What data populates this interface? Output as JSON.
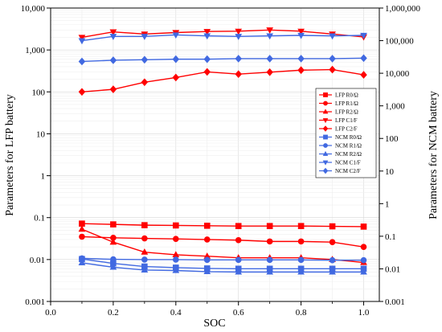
{
  "chart_data": {
    "type": "line",
    "x": [
      0.1,
      0.2,
      0.3,
      0.4,
      0.5,
      0.6,
      0.7,
      0.8,
      0.9,
      1.0
    ],
    "xlabel": "SOC",
    "ylabel_left": "Parameters for LFP battery",
    "ylabel_right": "Parameters for NCM battery",
    "xlim": [
      0.0,
      1.05
    ],
    "ylim_left": [
      0.001,
      10000
    ],
    "ylim_right": [
      0.001,
      1000000
    ],
    "yscale": "log",
    "grid": true,
    "legend_position": "right",
    "x_ticks": [
      "0.0",
      "0.2",
      "0.4",
      "0.6",
      "0.8",
      "1.0"
    ],
    "y_left_ticks": [
      "0.001",
      "0.01",
      "0.1",
      "1",
      "10",
      "100",
      "1,000",
      "10,000"
    ],
    "y_right_ticks": [
      "0.001",
      "0.01",
      "0.1",
      "1",
      "10",
      "100",
      "1,000",
      "10,000",
      "100,000",
      "1,000,000"
    ],
    "series": [
      {
        "name": "LFP R0/Ω",
        "axis": "left",
        "color": "#ff0000",
        "marker": "square",
        "values": [
          0.072,
          0.069,
          0.066,
          0.065,
          0.064,
          0.063,
          0.063,
          0.063,
          0.062,
          0.061
        ]
      },
      {
        "name": "LFP R1/Ω",
        "axis": "left",
        "color": "#ff0000",
        "marker": "circle",
        "values": [
          0.035,
          0.033,
          0.032,
          0.031,
          0.03,
          0.029,
          0.027,
          0.027,
          0.026,
          0.02
        ]
      },
      {
        "name": "LFP R2/Ω",
        "axis": "left",
        "color": "#ff0000",
        "marker": "triangle-up",
        "values": [
          0.053,
          0.026,
          0.015,
          0.013,
          0.012,
          0.011,
          0.011,
          0.011,
          0.01,
          0.0085
        ]
      },
      {
        "name": "LFP C1/F",
        "axis": "left",
        "color": "#ff0000",
        "marker": "triangle-down",
        "values": [
          2000,
          2700,
          2400,
          2600,
          2750,
          2800,
          3000,
          2800,
          2400,
          2050
        ]
      },
      {
        "name": "LFP C2/F",
        "axis": "left",
        "color": "#ff0000",
        "marker": "diamond",
        "values": [
          100,
          115,
          170,
          220,
          300,
          265,
          295,
          330,
          340,
          255
        ]
      },
      {
        "name": "NCM R0/Ω",
        "axis": "right",
        "color": "#4169e1",
        "marker": "square",
        "values": [
          0.02,
          0.0147,
          0.0118,
          0.0109,
          0.0103,
          0.0101,
          0.0101,
          0.0101,
          0.0101,
          0.0101
        ]
      },
      {
        "name": "NCM R1/Ω",
        "axis": "right",
        "color": "#4169e1",
        "marker": "circle",
        "values": [
          0.021,
          0.0196,
          0.0192,
          0.0192,
          0.0188,
          0.0188,
          0.0188,
          0.0188,
          0.0184,
          0.0184
        ]
      },
      {
        "name": "NCM R2/Ω",
        "axis": "right",
        "color": "#4169e1",
        "marker": "triangle-up",
        "values": [
          0.0153,
          0.0112,
          0.0092,
          0.0089,
          0.0082,
          0.008,
          0.008,
          0.008,
          0.008,
          0.008
        ]
      },
      {
        "name": "NCM C1/F",
        "axis": "right",
        "color": "#4169e1",
        "marker": "triangle-down",
        "values": [
          100000,
          135000,
          135000,
          150000,
          140000,
          135000,
          140000,
          145000,
          140000,
          145000
        ]
      },
      {
        "name": "NCM C2/F",
        "axis": "right",
        "color": "#4169e1",
        "marker": "diamond",
        "values": [
          23000,
          25000,
          26000,
          27000,
          27000,
          28000,
          28000,
          28000,
          28000,
          29000
        ]
      }
    ]
  }
}
